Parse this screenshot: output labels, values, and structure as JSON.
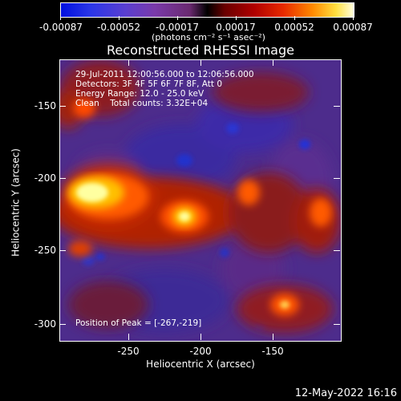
{
  "colorbar": {
    "ticks": [
      "-0.00087",
      "-0.00052",
      "-0.00017",
      "0.00017",
      "0.00052",
      "0.00087"
    ],
    "units": "(photons cm⁻² s⁻¹ asec⁻²)"
  },
  "title": "Reconstructed RHESSI Image",
  "info": {
    "line1": "29-Jul-2011 12:00:56.000 to 12:06:56.000",
    "line2": "Detectors: 3F 4F 5F 6F 7F 8F, Att 0",
    "line3": "Energy Range: 12.0 - 25.0 keV",
    "line4": "Clean    Total counts: 3.32E+04",
    "peak": "Position of Peak = [-267,-219]"
  },
  "axes": {
    "xlabel": "Heliocentric X (arcsec)",
    "ylabel": "Heliocentric Y (arcsec)",
    "xticks": [
      "-250",
      "-200",
      "-150"
    ],
    "yticks": [
      "-150",
      "-200",
      "-250",
      "-300"
    ]
  },
  "footer": {
    "date": "12-May-2022 16:16"
  },
  "colors": {
    "hot": "#ffff66",
    "cold": "#1a2fd6"
  }
}
